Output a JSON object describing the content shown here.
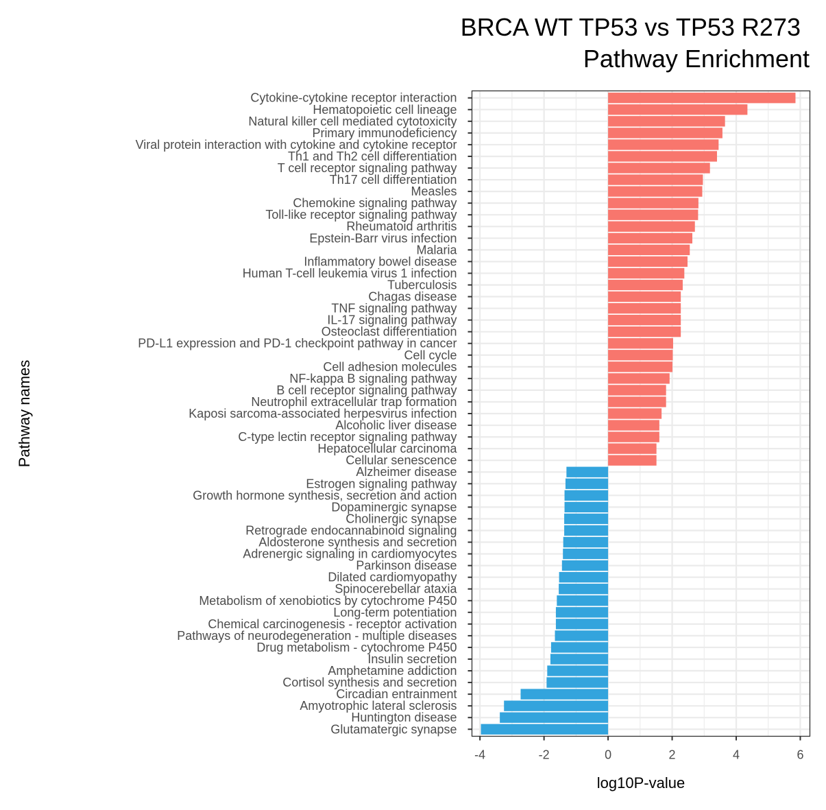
{
  "chart_data": {
    "type": "bar",
    "orientation": "horizontal",
    "title": "BRCA WT TP53 vs TP53 R273",
    "subtitle": "Pathway Enrichment",
    "xlabel": "log10P-value",
    "ylabel": "Pathway names",
    "xlim": [
      -4.25,
      6.3
    ],
    "xticks": [
      -4,
      -2,
      0,
      2,
      4,
      6
    ],
    "grid": true,
    "colors": {
      "positive": "#F8766D",
      "negative": "#33A4DD",
      "grid": "#ebebeb",
      "axis": "#333333"
    },
    "categories": [
      "Cytokine-cytokine receptor interaction",
      "Hematopoietic cell lineage",
      "Natural killer cell mediated cytotoxicity",
      "Primary immunodeficiency",
      "Viral protein interaction with cytokine and cytokine receptor",
      "Th1 and Th2 cell differentiation",
      "T cell receptor signaling pathway",
      "Th17 cell differentiation",
      "Measles",
      "Chemokine signaling pathway",
      "Toll-like receptor signaling pathway",
      "Rheumatoid arthritis",
      "Epstein-Barr virus infection",
      "Malaria",
      "Inflammatory bowel disease",
      "Human T-cell leukemia virus 1 infection",
      "Tuberculosis",
      "Chagas disease",
      "TNF signaling pathway",
      "IL-17 signaling pathway",
      "Osteoclast differentiation",
      "PD-L1 expression and PD-1 checkpoint pathway in cancer",
      "Cell cycle",
      "Cell adhesion molecules",
      "NF-kappa B signaling pathway",
      "B cell receptor signaling pathway",
      "Neutrophil extracellular trap formation",
      "Kaposi sarcoma-associated herpesvirus infection",
      "Alcoholic liver disease",
      "C-type lectin receptor signaling pathway",
      "Hepatocellular carcinoma",
      "Cellular senescence",
      "Alzheimer disease",
      "Estrogen signaling pathway",
      "Growth hormone synthesis, secretion and action",
      "Dopaminergic synapse",
      "Cholinergic synapse",
      "Retrograde endocannabinoid signaling",
      "Aldosterone synthesis and secretion",
      "Adrenergic signaling in cardiomyocytes",
      "Parkinson disease",
      "Dilated cardiomyopathy",
      "Spinocerebellar ataxia",
      "Metabolism of xenobiotics by cytochrome P450",
      "Long-term potentiation",
      "Chemical carcinogenesis - receptor activation",
      "Pathways of neurodegeneration - multiple diseases",
      "Drug metabolism - cytochrome P450",
      "Insulin secretion",
      "Amphetamine addiction",
      "Cortisol synthesis and secretion",
      "Circadian entrainment",
      "Amyotrophic lateral sclerosis",
      "Huntington disease",
      "Glutamatergic synapse"
    ],
    "values": [
      5.85,
      4.35,
      3.65,
      3.57,
      3.45,
      3.4,
      3.18,
      2.96,
      2.94,
      2.82,
      2.81,
      2.71,
      2.63,
      2.55,
      2.48,
      2.38,
      2.33,
      2.27,
      2.27,
      2.27,
      2.27,
      2.03,
      2.02,
      2.01,
      1.92,
      1.81,
      1.81,
      1.67,
      1.6,
      1.6,
      1.51,
      1.51,
      -1.3,
      -1.33,
      -1.36,
      -1.36,
      -1.37,
      -1.37,
      -1.4,
      -1.41,
      -1.44,
      -1.53,
      -1.54,
      -1.6,
      -1.63,
      -1.63,
      -1.66,
      -1.78,
      -1.8,
      -1.9,
      -1.92,
      -2.73,
      -3.25,
      -3.38,
      -3.97
    ]
  }
}
